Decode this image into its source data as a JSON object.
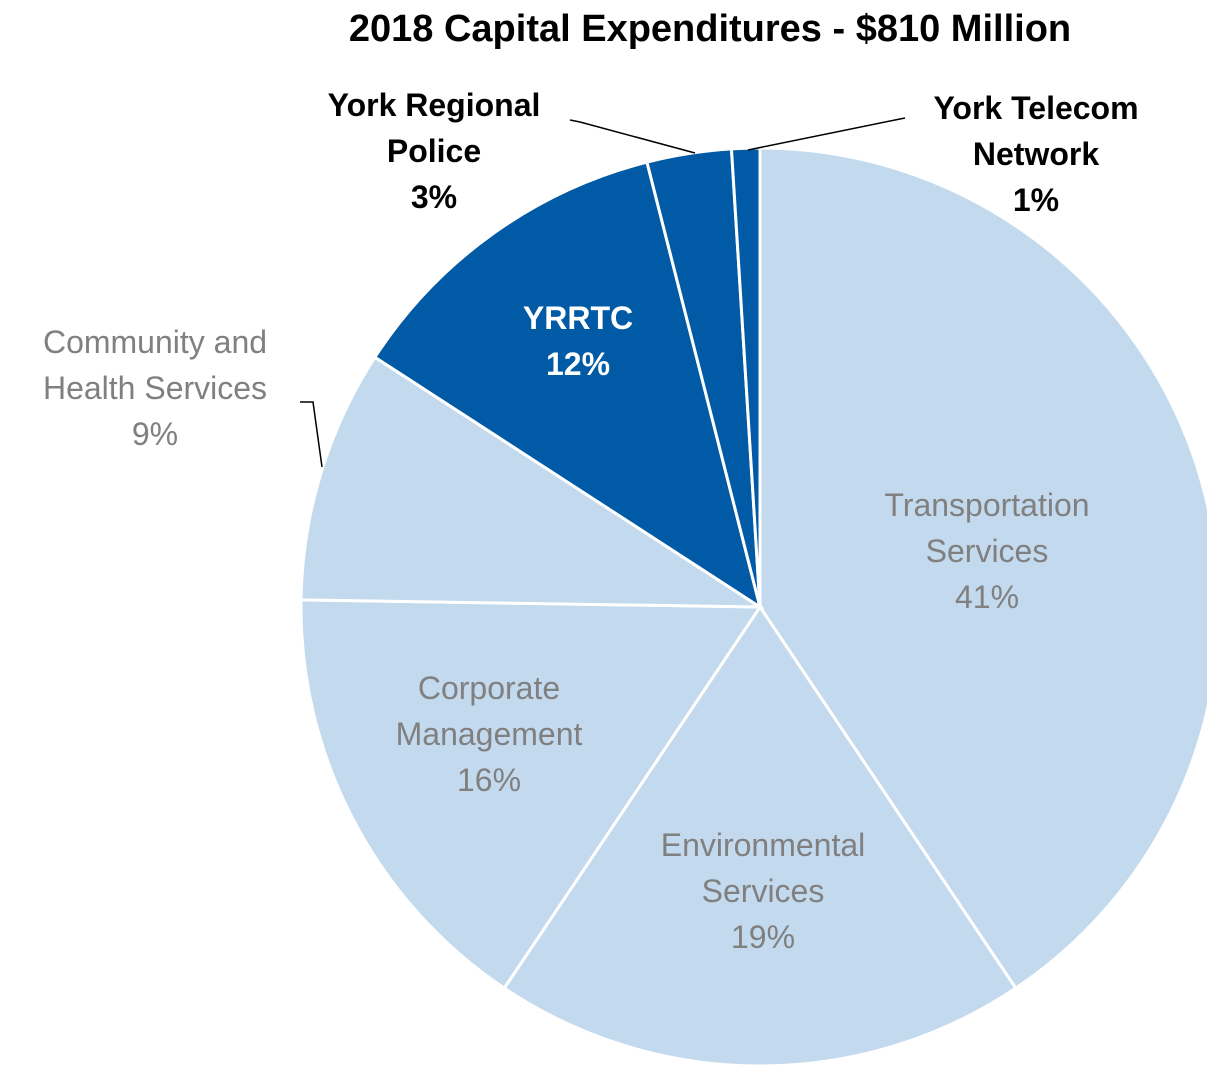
{
  "chart_data": {
    "type": "pie",
    "title": "2018 Capital Expenditures - $810 Million",
    "categories": [
      "Transportation Services",
      "Environmental Services",
      "Corporate Management",
      "Community and Health Services",
      "YRRTC",
      "York Regional Police",
      "York Telecom Network"
    ],
    "values": [
      41,
      19,
      16,
      9,
      12,
      3,
      1
    ],
    "value_labels": [
      "41%",
      "19%",
      "16%",
      "9%",
      "12%",
      "3%",
      "1%"
    ],
    "colors": [
      "#c3d9ee",
      "#c3d9ee",
      "#c3d9ee",
      "#c3d9ee",
      "#005aa6",
      "#005aa6",
      "#005aa6"
    ]
  }
}
